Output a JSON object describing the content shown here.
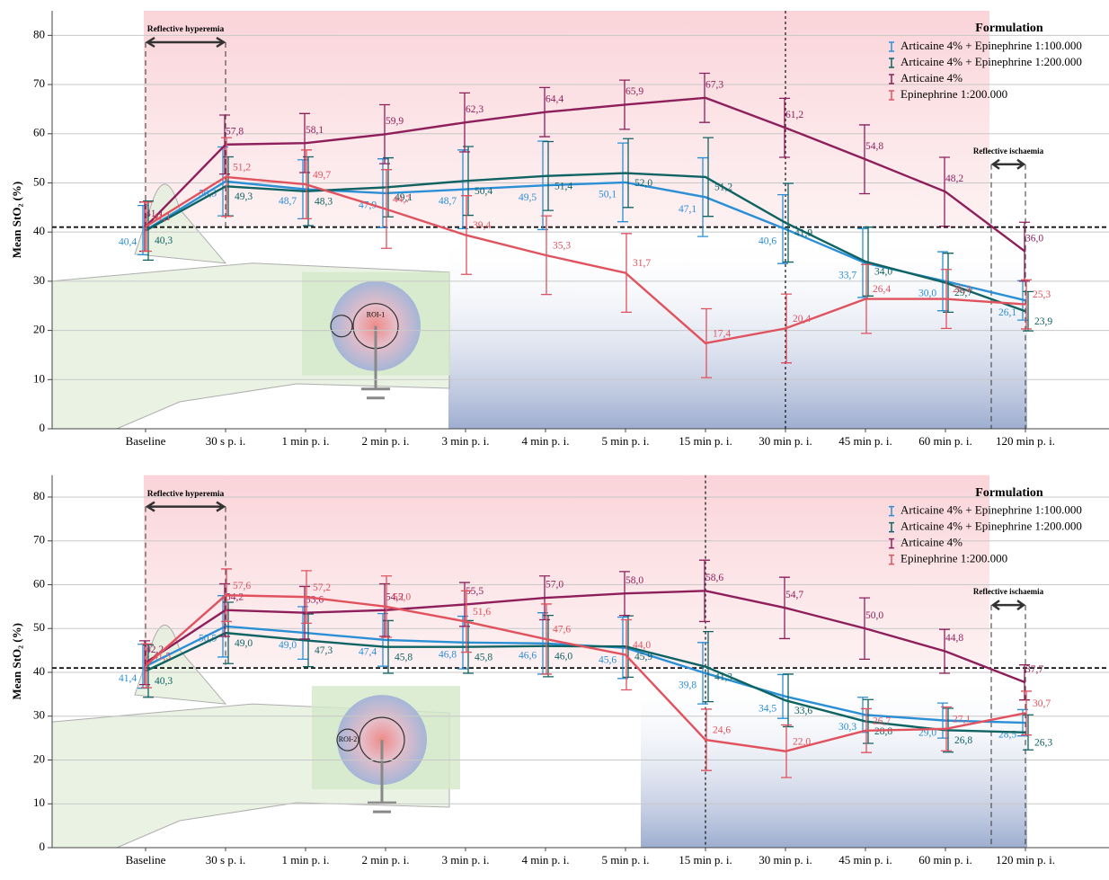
{
  "chart_data": [
    {
      "type": "line",
      "y_label": "Mean StO₂ (%)",
      "categories": [
        "Baseline",
        "30 s p. i.",
        "1 min p. i.",
        "2 min p. i.",
        "3 min p. i.",
        "4 min p. i.",
        "5 min p. i.",
        "15 min p. i.",
        "30 min p. i.",
        "45 min p. i.",
        "60 min p. i.",
        "120 min p. i."
      ],
      "ylim": [
        0,
        85
      ],
      "yticks": [
        0,
        10,
        20,
        30,
        40,
        50,
        60,
        70,
        80
      ],
      "grid": true,
      "hline": 41,
      "vline": "30 min p. i.",
      "legend_title": "Formulation",
      "legend": "upper right",
      "annotations": [
        "Reflective hyperemia",
        "Reflective ischaemia"
      ],
      "roi_label": "ROI-1",
      "series": [
        {
          "name": "Articaine 4% + Epinephrine 1:100.000",
          "color": "#2b8fd6",
          "values": [
            40.4,
            50.3,
            48.7,
            47.9,
            48.7,
            49.5,
            50.1,
            47.1,
            40.6,
            33.7,
            30.0,
            26.1
          ],
          "value_labels": [
            "40,4",
            "50,3",
            "48,7",
            "47,9",
            "48,7",
            "49,5",
            "50,1",
            "47,1",
            "40,6",
            "33,7",
            "30,0",
            "26,1"
          ],
          "errors": [
            5,
            7,
            6,
            7,
            8,
            9,
            8,
            8,
            7,
            7,
            6,
            4
          ]
        },
        {
          "name": "Articaine 4% + Epinephrine 1:200.000",
          "color": "#0f6363",
          "values": [
            40.3,
            49.3,
            48.3,
            49.1,
            50.4,
            51.4,
            52.0,
            51.2,
            41.9,
            34.0,
            29.7,
            23.9
          ],
          "value_labels": [
            "40,3",
            "49,3",
            "48,3",
            "49,1",
            "50,4",
            "51,4",
            "52,0",
            "51,2",
            "41,9",
            "34,0",
            "29,7",
            "23,9"
          ],
          "errors": [
            6,
            6,
            7,
            6,
            7,
            7,
            7,
            8,
            8,
            7,
            6,
            4
          ]
        },
        {
          "name": "Articaine 4%",
          "color": "#8e1f5b",
          "values": [
            41.1,
            57.8,
            58.1,
            59.9,
            62.3,
            64.4,
            65.9,
            67.3,
            61.2,
            54.8,
            48.2,
            36.0
          ],
          "value_labels": [
            "41,1",
            "57,8",
            "58,1",
            "59,9",
            "62,3",
            "64,4",
            "65,9",
            "67,3",
            "61,2",
            "54,8",
            "48,2",
            "36,0"
          ],
          "errors": [
            5,
            6,
            6,
            6,
            6,
            5,
            5,
            5,
            6,
            7,
            7,
            6
          ]
        },
        {
          "name": "Epinephrine 1:200.000",
          "color": "#e0525e",
          "values": [
            41.1,
            51.2,
            49.7,
            44.7,
            39.4,
            35.3,
            31.7,
            17.4,
            20.4,
            26.4,
            26.4,
            25.3
          ],
          "value_labels": [
            "41,1",
            "51,2",
            "49,7",
            "44,7",
            "39,4",
            "35,3",
            "31,7",
            "17,4",
            "20,4",
            "26,4",
            "26,4",
            "25,3"
          ],
          "errors": [
            5,
            8,
            7,
            8,
            8,
            8,
            8,
            7,
            7,
            7,
            6,
            5
          ]
        }
      ]
    },
    {
      "type": "line",
      "y_label": "Mean StO₂ (%)",
      "categories": [
        "Baseline",
        "30 s p. i.",
        "1 min p. i.",
        "2 min p. i.",
        "3 min p. i.",
        "4 min p. i.",
        "5 min p. i.",
        "15 min p. i.",
        "30 min p. i.",
        "45 min p. i.",
        "60 min p. i.",
        "120 min p. i."
      ],
      "ylim": [
        0,
        85
      ],
      "yticks": [
        0,
        10,
        20,
        30,
        40,
        50,
        60,
        70,
        80
      ],
      "grid": true,
      "hline": 41,
      "vline": "15 min p. i.",
      "legend_title": "Formulation",
      "legend": "upper right",
      "annotations": [
        "Reflective hyperemia",
        "Reflective ischaemia"
      ],
      "roi_label": "ROI-2",
      "series": [
        {
          "name": "Articaine 4% + Epinephrine 1:100.000",
          "color": "#2b8fd6",
          "values": [
            41.4,
            50.5,
            49.0,
            47.4,
            46.8,
            46.6,
            45.6,
            39.8,
            34.5,
            30.3,
            29.0,
            28.5
          ],
          "value_labels": [
            "41,4",
            "50,5",
            "49,0",
            "47,4",
            "46,8",
            "46,6",
            "45,6",
            "39,8",
            "34,5",
            "30,3",
            "29,0",
            "28,5"
          ],
          "errors": [
            5,
            7,
            6,
            6,
            6,
            7,
            7,
            7,
            5,
            4,
            4,
            3
          ]
        },
        {
          "name": "Articaine 4% + Epinephrine 1:200.000",
          "color": "#0f6363",
          "values": [
            40.3,
            49.0,
            47.3,
            45.8,
            45.8,
            46.0,
            45.9,
            41.3,
            33.6,
            28.8,
            26.8,
            26.3
          ],
          "value_labels": [
            "40,3",
            "49,0",
            "47,3",
            "45,8",
            "45,8",
            "46,0",
            "45,9",
            "41,3",
            "33,6",
            "28,8",
            "26,8",
            "26,3"
          ],
          "errors": [
            6,
            7,
            6,
            6,
            6,
            7,
            7,
            8,
            6,
            5,
            5,
            4
          ]
        },
        {
          "name": "Articaine 4%",
          "color": "#8e1f5b",
          "values": [
            42.2,
            54.2,
            53.6,
            54.2,
            55.5,
            57.0,
            58.0,
            58.6,
            54.7,
            50.0,
            44.8,
            37.7
          ],
          "value_labels": [
            "42,2",
            "54,2",
            "53,6",
            "54,2",
            "55,5",
            "57,0",
            "58,0",
            "58,6",
            "54,7",
            "50,0",
            "44,8",
            "37,7"
          ],
          "errors": [
            5,
            6,
            6,
            6,
            5,
            5,
            5,
            7,
            7,
            7,
            5,
            4
          ]
        },
        {
          "name": "Epinephrine 1:200.000",
          "color": "#e0525e",
          "values": [
            41.5,
            57.6,
            57.2,
            55.0,
            51.6,
            47.6,
            44.0,
            24.6,
            22.0,
            26.7,
            27.1,
            30.7
          ],
          "value_labels": [
            "41,5",
            "57,6",
            "57,2",
            "55,0",
            "51,6",
            "47,6",
            "44,0",
            "24,6",
            "22,0",
            "26,7",
            "27,1",
            "30,7"
          ],
          "errors": [
            5,
            6,
            6,
            7,
            7,
            8,
            8,
            7,
            6,
            5,
            5,
            5
          ]
        }
      ]
    }
  ]
}
